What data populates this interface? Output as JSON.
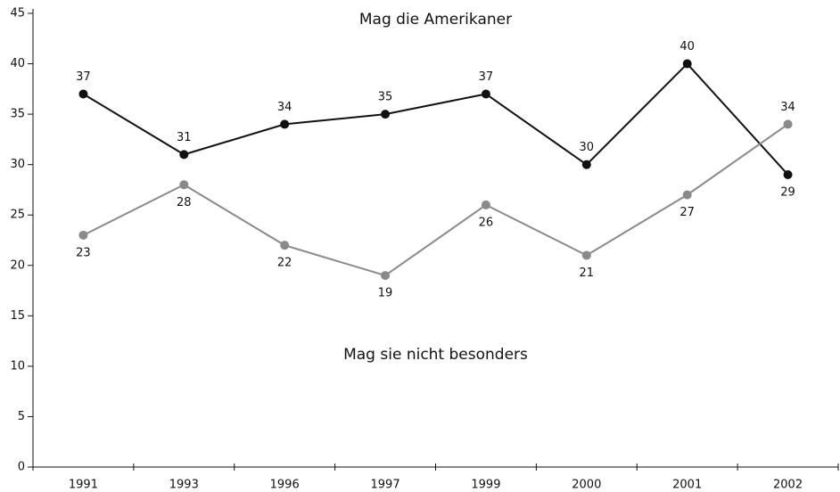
{
  "chart_data": {
    "type": "line",
    "categories": [
      "1991",
      "1993",
      "1996",
      "1997",
      "1999",
      "2000",
      "2001",
      "2002"
    ],
    "series": [
      {
        "name": "Mag die Amerikaner",
        "color": "#111111",
        "values": [
          37,
          31,
          34,
          35,
          37,
          30,
          40,
          29
        ]
      },
      {
        "name": "Mag sie nicht besonders",
        "color": "#8a8a8a",
        "values": [
          23,
          28,
          22,
          19,
          26,
          21,
          27,
          34
        ]
      }
    ],
    "ylim": [
      0,
      45
    ],
    "yticks": [
      0,
      5,
      10,
      15,
      20,
      25,
      30,
      35,
      40,
      45
    ]
  }
}
